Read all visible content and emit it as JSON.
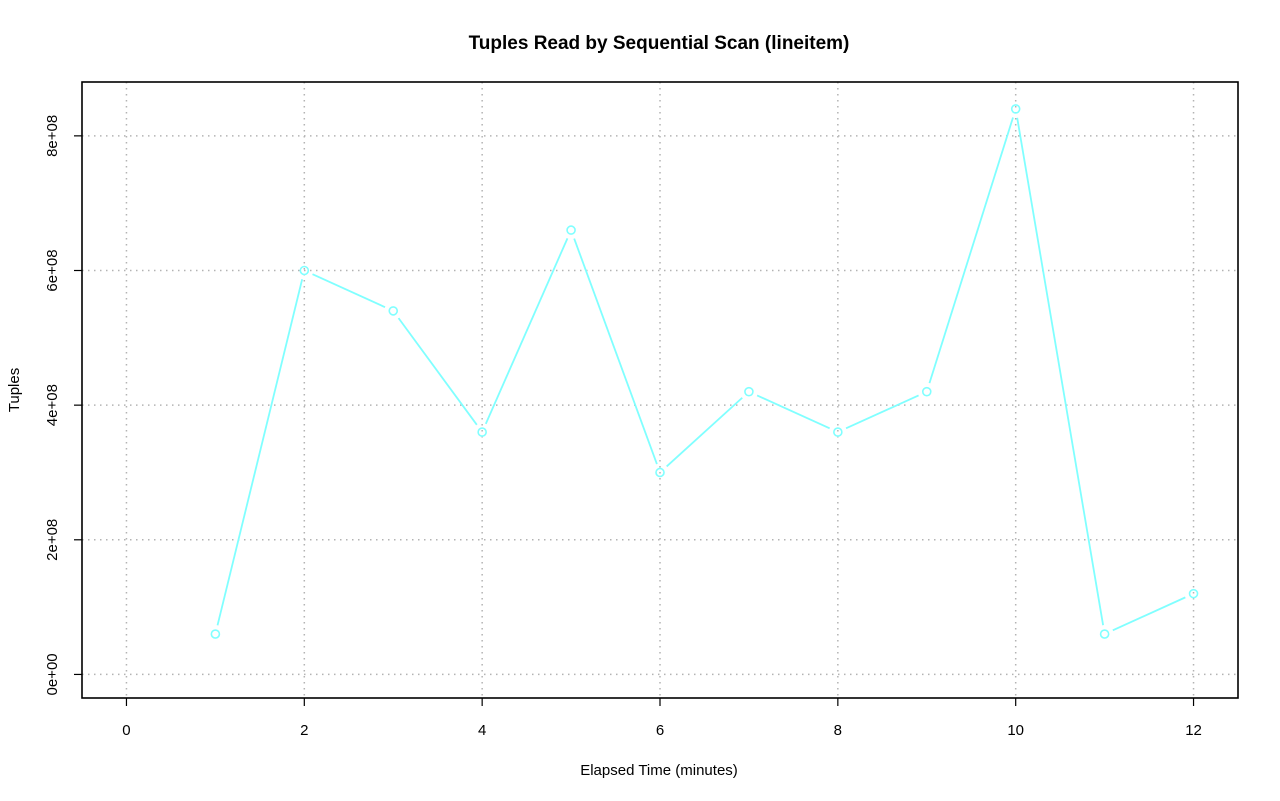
{
  "chart_data": {
    "type": "line",
    "title": "Tuples Read by Sequential Scan (lineitem)",
    "xlabel": "Elapsed Time (minutes)",
    "ylabel": "Tuples",
    "xlim": [
      -0.5,
      12.5
    ],
    "ylim": [
      -35000000.0,
      880000000.0
    ],
    "x_ticks": [
      0,
      2,
      4,
      6,
      8,
      10,
      12
    ],
    "x_tick_labels": [
      "0",
      "2",
      "4",
      "6",
      "8",
      "10",
      "12"
    ],
    "y_ticks": [
      0,
      200000000,
      400000000,
      600000000,
      800000000
    ],
    "y_tick_labels": [
      "0e+00",
      "2e+08",
      "4e+08",
      "6e+08",
      "8e+08"
    ],
    "grid": true,
    "series_color": "#80ffff",
    "series": [
      {
        "x": [
          1,
          2,
          3,
          4,
          5,
          6,
          7,
          8,
          9,
          10,
          11,
          12
        ],
        "values": [
          60000000,
          600000000,
          540000000,
          360000000,
          660000000,
          300000000,
          420000000,
          360000000,
          420000000,
          840000000,
          60000000,
          120000000
        ]
      }
    ]
  }
}
